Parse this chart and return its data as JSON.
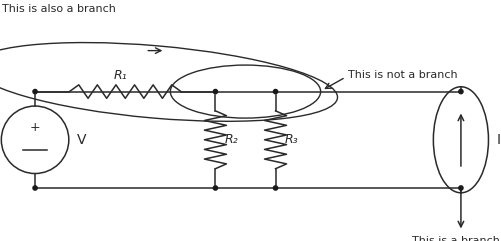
{
  "bg_color": "#ffffff",
  "line_color": "#2a2a2a",
  "node_color": "#1a1a1a",
  "R1_label": "R₁",
  "R2_label": "R₂",
  "R3_label": "R₃",
  "V_label": "V",
  "I_label": "I",
  "text_also_branch": "This is also a branch",
  "text_not_branch": "This is not a branch",
  "text_is_branch": "This is a branch",
  "xL": 0.07,
  "xM1": 0.43,
  "xM2": 0.55,
  "xR": 0.92,
  "yT": 0.62,
  "yB": 0.22
}
